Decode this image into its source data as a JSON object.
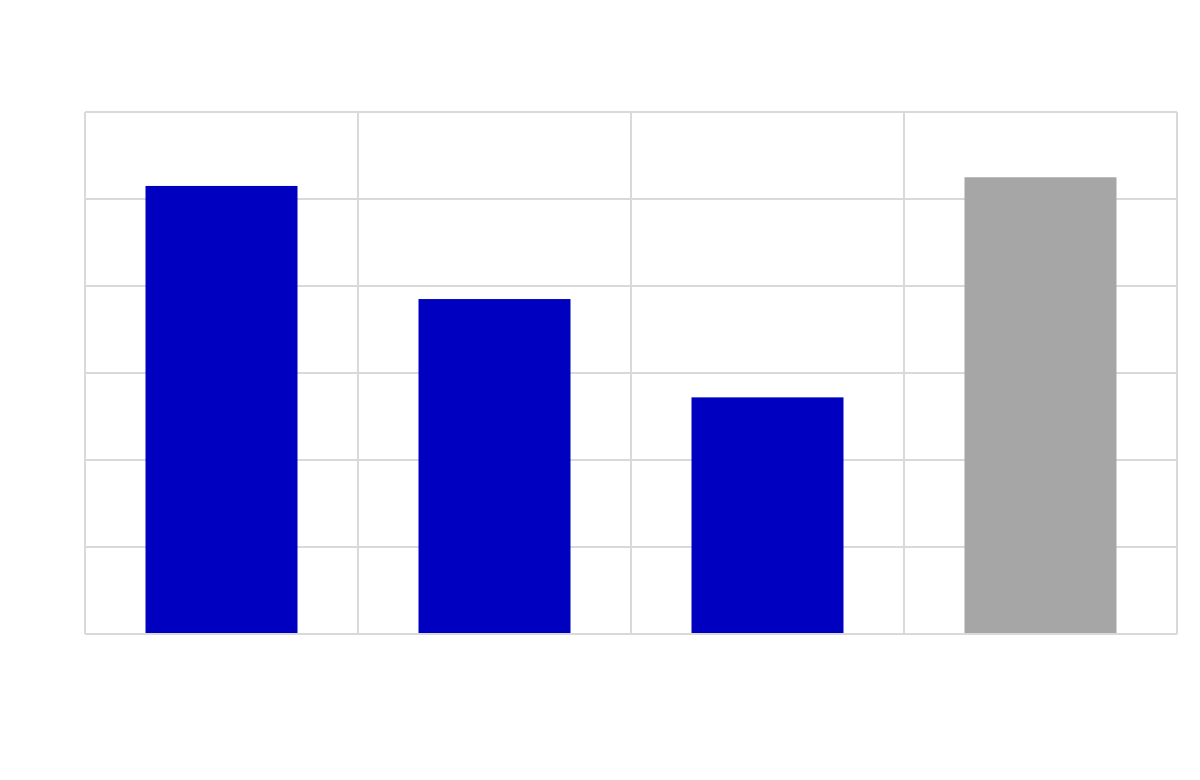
{
  "chart_data": {
    "type": "bar",
    "title": "",
    "xlabel": "",
    "ylabel": "",
    "categories": [
      "",
      "",
      "",
      ""
    ],
    "values": [
      5.15,
      3.85,
      2.72,
      5.25
    ],
    "ylim": [
      0,
      6
    ],
    "grid": true,
    "legend": "none",
    "colors": {
      "bar_primary": "#0000c0",
      "bar_highlight": "#a6a6a6",
      "grid": "#d9d9d9",
      "background": "#ffffff"
    },
    "bar_colors": [
      "#0000c0",
      "#0000c0",
      "#0000c0",
      "#a6a6a6"
    ]
  }
}
